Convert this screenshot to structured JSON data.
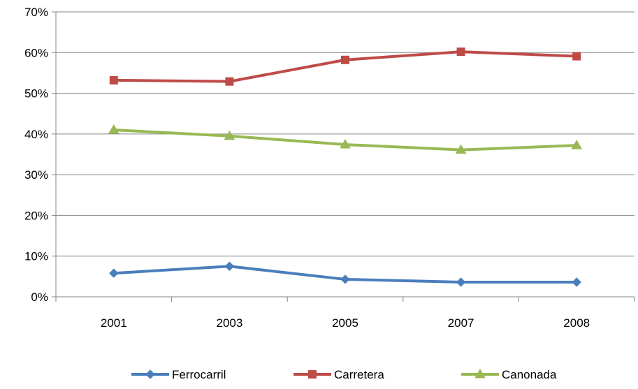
{
  "chart_data": {
    "type": "line",
    "title": "",
    "xlabel": "",
    "ylabel": "",
    "categories": [
      "2001",
      "2003",
      "2005",
      "2007",
      "2008"
    ],
    "ylim": [
      0,
      70
    ],
    "y_ticks": [
      0,
      10,
      20,
      30,
      40,
      50,
      60,
      70
    ],
    "y_tick_labels": [
      "0%",
      "10%",
      "20%",
      "30%",
      "40%",
      "50%",
      "60%",
      "70%"
    ],
    "grid": true,
    "legend_position": "bottom",
    "series": [
      {
        "name": "Ferrocarril",
        "values": [
          5.8,
          7.5,
          4.3,
          3.6,
          3.6
        ],
        "color": "#4a7ebb",
        "marker": "diamond"
      },
      {
        "name": "Carretera",
        "values": [
          53.2,
          52.9,
          58.2,
          60.2,
          59.1
        ],
        "color": "#be4b48",
        "marker": "square"
      },
      {
        "name": "Canonada",
        "values": [
          41.0,
          39.5,
          37.4,
          36.1,
          37.2
        ],
        "color": "#98b954",
        "marker": "triangle"
      }
    ]
  }
}
